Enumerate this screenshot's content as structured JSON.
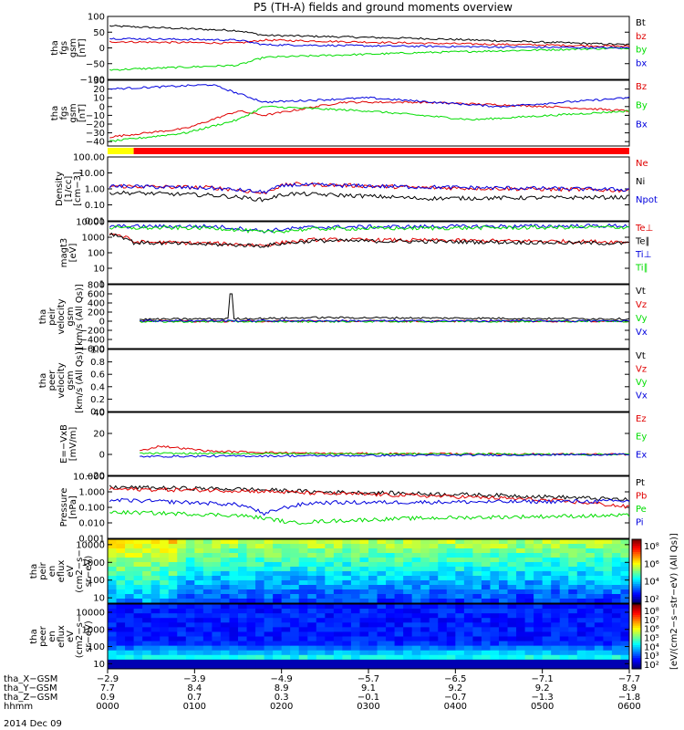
{
  "title": "P5 (TH-A) fields and ground moments overview",
  "date_label": "2014 Dec 09",
  "colors": {
    "black": "#000000",
    "red": "#e00000",
    "green": "#00dd00",
    "blue": "#0000dd",
    "bar_yellow": "#ffff00",
    "bar_red": "#ff0000"
  },
  "chart_data": [
    {
      "type": "line",
      "ylabel_lines": [
        "tha",
        "fgs",
        "gsm",
        "[nT]"
      ],
      "yticks": [
        "100",
        "50",
        "0",
        "−50",
        "−100"
      ],
      "ylim": [
        -100,
        100
      ],
      "log": false,
      "series": [
        {
          "name": "Bt",
          "color": "black"
        },
        {
          "name": "bz",
          "color": "red"
        },
        {
          "name": "by",
          "color": "green"
        },
        {
          "name": "bx",
          "color": "blue"
        }
      ]
    },
    {
      "type": "line",
      "ylabel_lines": [
        "tha",
        "fgs",
        "gsm",
        "[nT]"
      ],
      "yticks": [
        "30",
        "20",
        "10",
        "0",
        "−10",
        "−20",
        "−30",
        "−40"
      ],
      "ylim": [
        -45,
        30
      ],
      "log": false,
      "series": [
        {
          "name": "Bz",
          "color": "red"
        },
        {
          "name": "By",
          "color": "green"
        },
        {
          "name": "Bx",
          "color": "blue"
        }
      ]
    },
    {
      "type": "line",
      "ylabel_lines": [
        "Density",
        "[1/cc]",
        "[cm−3]"
      ],
      "yticks": [
        "100.00",
        "10.00",
        "1.00",
        "0.10",
        "0.01"
      ],
      "ylim": [
        0.01,
        100
      ],
      "log": true,
      "series": [
        {
          "name": "Ne",
          "color": "red"
        },
        {
          "name": "Ni",
          "color": "black"
        },
        {
          "name": "Npot",
          "color": "blue"
        }
      ]
    },
    {
      "type": "line",
      "ylabel_lines": [
        "magt3",
        "[eV]"
      ],
      "yticks": [
        "10000",
        "1000",
        "100",
        "10",
        "1"
      ],
      "ylim": [
        1,
        10000
      ],
      "log": true,
      "series": [
        {
          "name": "Te⊥",
          "color": "red"
        },
        {
          "name": "Te∥",
          "color": "black"
        },
        {
          "name": "Ti⊥",
          "color": "blue"
        },
        {
          "name": "Ti∥",
          "color": "green"
        }
      ]
    },
    {
      "type": "line",
      "ylabel_lines": [
        "tha",
        "peir",
        "velocity",
        "gsm",
        "[km/s (All Qs)]"
      ],
      "yticks": [
        "800",
        "600",
        "400",
        "200",
        "0",
        "−200",
        "−400",
        "−600"
      ],
      "ylim": [
        -600,
        800
      ],
      "log": false,
      "series": [
        {
          "name": "Vt",
          "color": "black"
        },
        {
          "name": "Vz",
          "color": "red"
        },
        {
          "name": "Vy",
          "color": "green"
        },
        {
          "name": "Vx",
          "color": "blue"
        }
      ]
    },
    {
      "type": "line",
      "ylabel_lines": [
        "tha",
        "peer",
        "velocity",
        "gsm",
        "[km/s (All Qs)]"
      ],
      "yticks": [
        "1.0",
        "0.8",
        "0.6",
        "0.4",
        "0.2",
        "0.0"
      ],
      "ylim": [
        0,
        1
      ],
      "log": false,
      "series": [
        {
          "name": "Vt",
          "color": "black"
        },
        {
          "name": "Vz",
          "color": "red"
        },
        {
          "name": "Vy",
          "color": "green"
        },
        {
          "name": "Vx",
          "color": "blue"
        }
      ]
    },
    {
      "type": "line",
      "ylabel_lines": [
        "E=−VxB",
        "[mV/m]"
      ],
      "yticks": [
        "40",
        "20",
        "0",
        "−20"
      ],
      "ylim": [
        -20,
        40
      ],
      "log": false,
      "series": [
        {
          "name": "Ez",
          "color": "red"
        },
        {
          "name": "Ey",
          "color": "green"
        },
        {
          "name": "Ex",
          "color": "blue"
        }
      ]
    },
    {
      "type": "line",
      "ylabel_lines": [
        "Pressure",
        "[nPa]"
      ],
      "yticks": [
        "10.000",
        "1.000",
        "0.100",
        "0.010",
        "0.001"
      ],
      "ylim": [
        0.001,
        10
      ],
      "log": true,
      "series": [
        {
          "name": "Pt",
          "color": "black"
        },
        {
          "name": "Pb",
          "color": "red"
        },
        {
          "name": "Pe",
          "color": "green"
        },
        {
          "name": "Pi",
          "color": "blue"
        }
      ]
    },
    {
      "type": "heatmap",
      "ylabel_lines": [
        "tha",
        "peir",
        "en",
        "eflux",
        "eV",
        "(cm2−s−",
        "sr−eV)"
      ],
      "yticks": [
        "10000",
        "1000",
        "100",
        "10"
      ],
      "ylim": [
        5,
        20000
      ],
      "log": true,
      "colorbar_ticks": [
        "10⁸",
        "10⁶",
        "10⁴",
        "10²"
      ]
    },
    {
      "type": "heatmap",
      "ylabel_lines": [
        "tha",
        "peer",
        "en",
        "eflux",
        "eV",
        "(cm2−s−",
        "sr−eV)"
      ],
      "yticks": [
        "10000",
        "1000",
        "100",
        "10"
      ],
      "ylim": [
        5,
        30000
      ],
      "log": true,
      "colorbar_ticks": [
        "10⁸",
        "10⁷",
        "10⁶",
        "10⁵",
        "10⁴",
        "10³",
        "10²"
      ]
    }
  ],
  "colorbar_label": "[eV/(cm2−s−str−eV) (All Qs)]",
  "footer": {
    "row_labels": [
      "tha_X−GSM",
      "tha_Y−GSM",
      "tha_Z−GSM",
      "hhmm"
    ],
    "columns": [
      {
        "x": "−2.9",
        "y": "7.7",
        "z": "0.9",
        "t": "0000"
      },
      {
        "x": "−3.9",
        "y": "8.4",
        "z": "0.7",
        "t": "0100"
      },
      {
        "x": "−4.9",
        "y": "8.9",
        "z": "0.3",
        "t": "0200"
      },
      {
        "x": "−5.7",
        "y": "9.1",
        "z": "−0.1",
        "t": "0300"
      },
      {
        "x": "−6.5",
        "y": "9.2",
        "z": "−0.7",
        "t": "0400"
      },
      {
        "x": "−7.1",
        "y": "9.2",
        "z": "−1.3",
        "t": "0500"
      },
      {
        "x": "−7.7",
        "y": "8.9",
        "z": "−1.8",
        "t": "0600"
      }
    ]
  }
}
